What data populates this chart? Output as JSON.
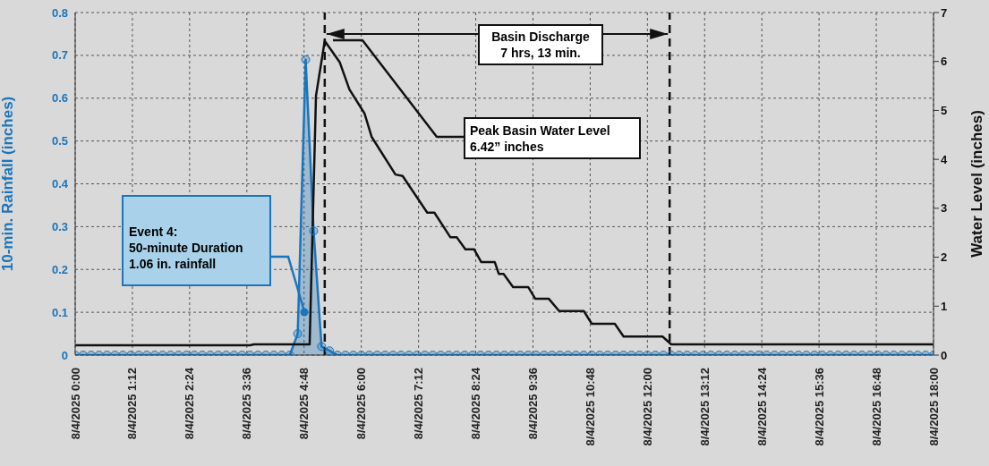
{
  "chart_data": {
    "type": "line",
    "ylabel": "10-min. Rainfall (inches)",
    "y2label": "Water Level (inches)",
    "xlim": [
      "2025-08-04T00:00",
      "2025-08-04T18:00"
    ],
    "xticks": [
      {
        "value": "2025-08-04T00:00",
        "label": "8/4/2025 0:00"
      },
      {
        "value": "2025-08-04T01:12",
        "label": "8/4/2025 1:12"
      },
      {
        "value": "2025-08-04T02:24",
        "label": "8/4/2025 2:24"
      },
      {
        "value": "2025-08-04T03:36",
        "label": "8/4/2025 3:36"
      },
      {
        "value": "2025-08-04T04:48",
        "label": "8/4/2025 4:48"
      },
      {
        "value": "2025-08-04T06:00",
        "label": "8/4/2025 6:00"
      },
      {
        "value": "2025-08-04T07:12",
        "label": "8/4/2025 7:12"
      },
      {
        "value": "2025-08-04T08:24",
        "label": "8/4/2025 8:24"
      },
      {
        "value": "2025-08-04T09:36",
        "label": "8/4/2025 9:36"
      },
      {
        "value": "2025-08-04T10:48",
        "label": "8/4/2025 10:48"
      },
      {
        "value": "2025-08-04T12:00",
        "label": "8/4/2025 12:00"
      },
      {
        "value": "2025-08-04T13:12",
        "label": "8/4/2025 13:12"
      },
      {
        "value": "2025-08-04T14:24",
        "label": "8/4/2025 14:24"
      },
      {
        "value": "2025-08-04T15:36",
        "label": "8/4/2025 15:36"
      },
      {
        "value": "2025-08-04T16:48",
        "label": "8/4/2025 16:48"
      },
      {
        "value": "2025-08-04T18:00",
        "label": "8/4/2025 18:00"
      }
    ],
    "ylim": [
      0,
      0.8
    ],
    "yticks": [
      0,
      0.1,
      0.2,
      0.3,
      0.4,
      0.5,
      0.6,
      0.7,
      0.8
    ],
    "y2lim": [
      0,
      7
    ],
    "y2ticks": [
      0,
      1,
      2,
      3,
      4,
      5,
      6,
      7
    ],
    "grid": true,
    "legend": false,
    "series": [
      {
        "type": "area",
        "marker": "circle",
        "color": "#1b75bb",
        "x": [
          "2025-08-04T00:00",
          "2025-08-04T00:10",
          "2025-08-04T00:20",
          "2025-08-04T00:30",
          "2025-08-04T00:40",
          "2025-08-04T00:50",
          "2025-08-04T01:00",
          "2025-08-04T01:10",
          "2025-08-04T01:20",
          "2025-08-04T01:30",
          "2025-08-04T01:40",
          "2025-08-04T01:50",
          "2025-08-04T02:00",
          "2025-08-04T02:10",
          "2025-08-04T02:20",
          "2025-08-04T02:30",
          "2025-08-04T02:40",
          "2025-08-04T02:50",
          "2025-08-04T03:00",
          "2025-08-04T03:10",
          "2025-08-04T03:20",
          "2025-08-04T03:30",
          "2025-08-04T03:40",
          "2025-08-04T03:50",
          "2025-08-04T04:00",
          "2025-08-04T04:10",
          "2025-08-04T04:20",
          "2025-08-04T04:30",
          "2025-08-04T04:40",
          "2025-08-04T04:50",
          "2025-08-04T05:00",
          "2025-08-04T05:10",
          "2025-08-04T05:20",
          "2025-08-04T05:30",
          "2025-08-04T05:40",
          "2025-08-04T05:50",
          "2025-08-04T06:00",
          "2025-08-04T06:10",
          "2025-08-04T06:20",
          "2025-08-04T06:30",
          "2025-08-04T06:40",
          "2025-08-04T06:50",
          "2025-08-04T07:00",
          "2025-08-04T07:10",
          "2025-08-04T07:20",
          "2025-08-04T07:30",
          "2025-08-04T07:40",
          "2025-08-04T07:50",
          "2025-08-04T08:00",
          "2025-08-04T08:10",
          "2025-08-04T08:20",
          "2025-08-04T08:30",
          "2025-08-04T08:40",
          "2025-08-04T08:50",
          "2025-08-04T09:00",
          "2025-08-04T09:10",
          "2025-08-04T09:20",
          "2025-08-04T09:30",
          "2025-08-04T09:40",
          "2025-08-04T09:50",
          "2025-08-04T10:00",
          "2025-08-04T10:10",
          "2025-08-04T10:20",
          "2025-08-04T10:30",
          "2025-08-04T10:40",
          "2025-08-04T10:50",
          "2025-08-04T11:00",
          "2025-08-04T11:10",
          "2025-08-04T11:20",
          "2025-08-04T11:30",
          "2025-08-04T11:40",
          "2025-08-04T11:50",
          "2025-08-04T12:00",
          "2025-08-04T12:10",
          "2025-08-04T12:20",
          "2025-08-04T12:30",
          "2025-08-04T12:40",
          "2025-08-04T12:50",
          "2025-08-04T13:00",
          "2025-08-04T13:10",
          "2025-08-04T13:20",
          "2025-08-04T13:30",
          "2025-08-04T13:40",
          "2025-08-04T13:50",
          "2025-08-04T14:00",
          "2025-08-04T14:10",
          "2025-08-04T14:20",
          "2025-08-04T14:30",
          "2025-08-04T14:40",
          "2025-08-04T14:50",
          "2025-08-04T15:00",
          "2025-08-04T15:10",
          "2025-08-04T15:20",
          "2025-08-04T15:30",
          "2025-08-04T15:40",
          "2025-08-04T15:50",
          "2025-08-04T16:00",
          "2025-08-04T16:10",
          "2025-08-04T16:20",
          "2025-08-04T16:30",
          "2025-08-04T16:40",
          "2025-08-04T16:50",
          "2025-08-04T17:00",
          "2025-08-04T17:10",
          "2025-08-04T17:20",
          "2025-08-04T17:30",
          "2025-08-04T17:40",
          "2025-08-04T17:50",
          "2025-08-04T18:00"
        ],
        "values": [
          0,
          0,
          0,
          0,
          0,
          0,
          0,
          0,
          0,
          0,
          0,
          0,
          0,
          0,
          0,
          0,
          0,
          0,
          0,
          0,
          0,
          0,
          0,
          0,
          0,
          0,
          0,
          0,
          0.05,
          0.69,
          0.29,
          0.02,
          0.01,
          0,
          0,
          0,
          0,
          0,
          0,
          0,
          0,
          0,
          0,
          0,
          0,
          0,
          0,
          0,
          0,
          0,
          0,
          0,
          0,
          0,
          0,
          0,
          0,
          0,
          0,
          0,
          0,
          0,
          0,
          0,
          0,
          0,
          0,
          0,
          0,
          0,
          0,
          0,
          0,
          0,
          0,
          0,
          0,
          0,
          0,
          0,
          0,
          0,
          0,
          0,
          0,
          0,
          0,
          0,
          0,
          0,
          0,
          0,
          0,
          0,
          0,
          0,
          0,
          0,
          0,
          0,
          0,
          0,
          0,
          0,
          0,
          0,
          0,
          0,
          0
        ]
      },
      {
        "marker": "none",
        "axis": "y2",
        "color": "#111111",
        "x": [
          "2025-08-04T00:00",
          "2025-08-04T03:40",
          "2025-08-04T03:45",
          "2025-08-04T04:55",
          "2025-08-04T05:03",
          "2025-08-04T05:14",
          "2025-08-04T05:33",
          "2025-08-04T05:45",
          "2025-08-04T06:04",
          "2025-08-04T06:13",
          "2025-08-04T06:43",
          "2025-08-04T06:52",
          "2025-08-04T07:23",
          "2025-08-04T07:32",
          "2025-08-04T07:52",
          "2025-08-04T08:00",
          "2025-08-04T08:11",
          "2025-08-04T08:22",
          "2025-08-04T08:31",
          "2025-08-04T08:48",
          "2025-08-04T08:53",
          "2025-08-04T08:59",
          "2025-08-04T09:11",
          "2025-08-04T09:30",
          "2025-08-04T09:39",
          "2025-08-04T09:56",
          "2025-08-04T10:09",
          "2025-08-04T10:40",
          "2025-08-04T10:50",
          "2025-08-04T11:19",
          "2025-08-04T11:30",
          "2025-08-04T12:19",
          "2025-08-04T12:30",
          "2025-08-04T18:00"
        ],
        "values": [
          0.2,
          0.2,
          0.22,
          0.22,
          5.3,
          6.42,
          5.98,
          5.43,
          4.94,
          4.46,
          3.69,
          3.66,
          2.91,
          2.91,
          2.41,
          2.41,
          2.16,
          2.16,
          1.9,
          1.9,
          1.66,
          1.66,
          1.39,
          1.39,
          1.15,
          1.15,
          0.9,
          0.9,
          0.64,
          0.64,
          0.38,
          0.38,
          0.22,
          0.22
        ]
      }
    ],
    "ref_lines": [
      {
        "axis": "x",
        "value": "2025-08-04T05:14",
        "color": "#111111",
        "line_style": "dashed"
      },
      {
        "axis": "x",
        "value": "2025-08-04T12:28",
        "color": "#111111",
        "line_style": "dashed"
      }
    ],
    "annotations": [
      {
        "text": "Basin Discharge\n7 hrs, 13 min.",
        "x": "2025-08-04T12:28",
        "y": 0.75
      },
      "Peak Basin Water Level\n6.42” inches",
      "Event 4:\n50-minute Duration\n1.06 in. rainfall"
    ]
  }
}
